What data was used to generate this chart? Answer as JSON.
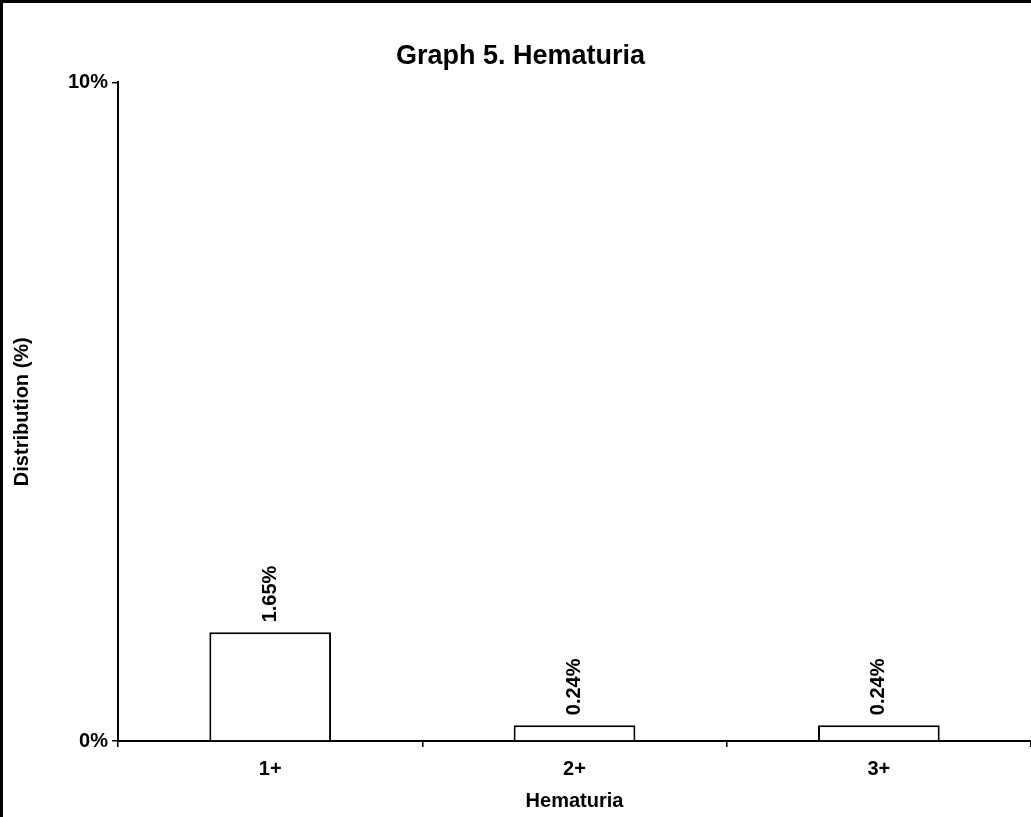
{
  "chart_data": {
    "type": "bar",
    "title": "Graph 5. Hematuria",
    "xlabel": "Hematuria",
    "ylabel": "Distribution (%)",
    "categories": [
      "1+",
      "2+",
      "3+"
    ],
    "values": [
      1.65,
      0.24,
      0.24
    ],
    "value_labels": [
      "1.65%",
      "0.24%",
      "0.24%"
    ],
    "color": "#ffffff",
    "ylim": [
      0,
      10
    ],
    "yticks": [
      {
        "value": 0,
        "label": "0%"
      },
      {
        "value": 10,
        "label": "10%"
      }
    ],
    "grid": false,
    "legend": false
  }
}
